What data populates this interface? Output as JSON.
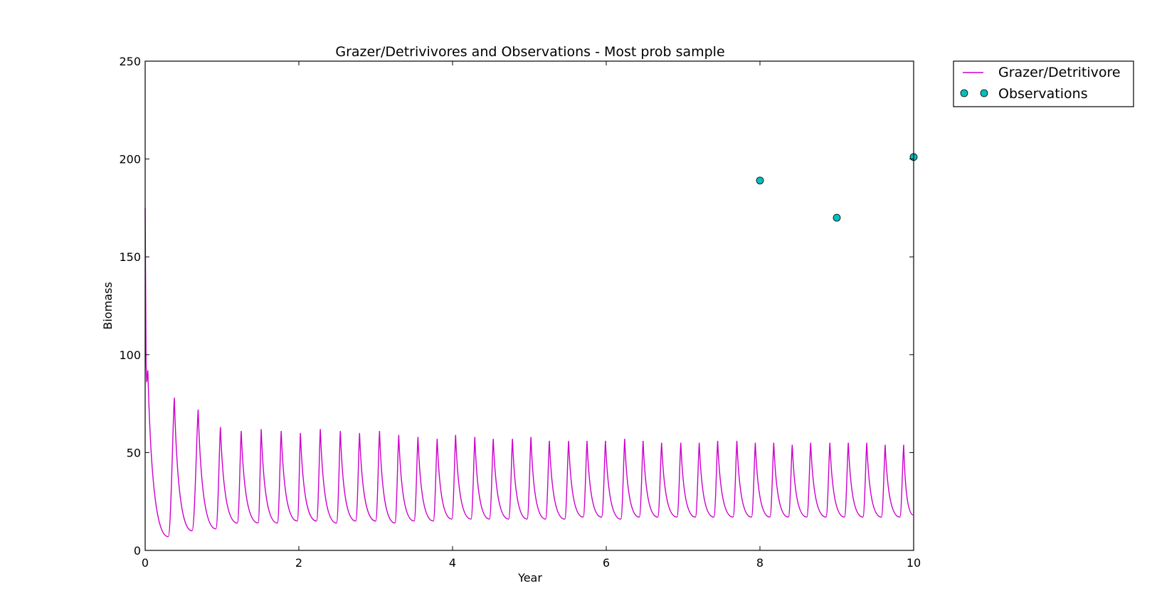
{
  "chart_data": {
    "type": "line",
    "title": "Grazer/Detrivivores and Observations - Most prob sample",
    "xlabel": "Year",
    "ylabel": "Biomass",
    "xlim": [
      0,
      10
    ],
    "ylim": [
      0,
      250
    ],
    "xticks": [
      0,
      2,
      4,
      6,
      8,
      10
    ],
    "yticks": [
      0,
      50,
      100,
      150,
      200,
      250
    ],
    "grid": false,
    "legend_placement": "outside top-right",
    "series": [
      {
        "name": "Grazer/Detritivore",
        "style": "line",
        "color": "#cc00cc",
        "x": [
          0.0,
          0.012,
          0.02,
          0.035,
          0.3,
          0.38,
          0.61,
          0.69,
          0.92,
          0.98,
          1.2,
          1.25,
          1.47,
          1.51,
          1.72,
          1.77,
          1.98,
          2.02,
          2.23,
          2.28,
          2.49,
          2.54,
          2.74,
          2.79,
          3.0,
          3.05,
          3.25,
          3.3,
          3.5,
          3.55,
          3.75,
          3.8,
          3.99,
          4.04,
          4.24,
          4.29,
          4.48,
          4.53,
          4.73,
          4.78,
          4.97,
          5.02,
          5.21,
          5.26,
          5.46,
          5.51,
          5.7,
          5.75,
          5.94,
          5.99,
          6.19,
          6.24,
          6.43,
          6.48,
          6.67,
          6.72,
          6.92,
          6.97,
          7.16,
          7.21,
          7.4,
          7.45,
          7.65,
          7.7,
          7.89,
          7.94,
          8.13,
          8.18,
          8.37,
          8.42,
          8.61,
          8.66,
          8.86,
          8.91,
          9.1,
          9.15,
          9.34,
          9.39,
          9.58,
          9.63,
          9.82,
          9.87,
          10.0
        ],
        "y": [
          175,
          95,
          86,
          92,
          7,
          78,
          10,
          72,
          11,
          63,
          14,
          61,
          14,
          62,
          14,
          61,
          15,
          60,
          15,
          62,
          14,
          61,
          15,
          60,
          15,
          61,
          14,
          59,
          15,
          58,
          15,
          57,
          16,
          59,
          16,
          58,
          16,
          57,
          16,
          57,
          16,
          58,
          16,
          56,
          16,
          56,
          17,
          56,
          17,
          56,
          16,
          57,
          17,
          56,
          17,
          55,
          17,
          55,
          17,
          55,
          17,
          56,
          17,
          56,
          17,
          55,
          17,
          55,
          17,
          54,
          17,
          55,
          17,
          55,
          17,
          55,
          17,
          55,
          17,
          54,
          17,
          54,
          18
        ]
      },
      {
        "name": "Observations",
        "style": "markers",
        "color": "#00bfbf",
        "x": [
          8,
          9,
          10
        ],
        "y": [
          189,
          170,
          201
        ]
      }
    ]
  }
}
